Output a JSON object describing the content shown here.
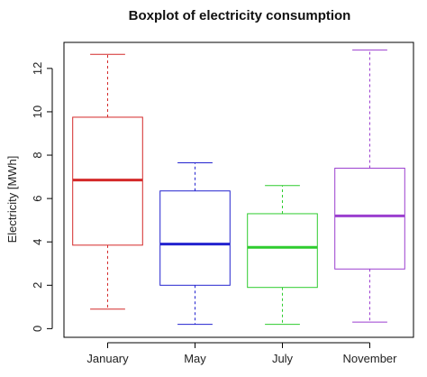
{
  "chart_data": {
    "type": "boxplot",
    "title": "Boxplot of electricity consumption",
    "xlabel": "",
    "ylabel": "Electricity [MWh]",
    "ylim": [
      -0.4,
      13.2
    ],
    "yticks": [
      0,
      2,
      4,
      6,
      8,
      10,
      12
    ],
    "grid": false,
    "legend": "none",
    "categories": [
      "January",
      "May",
      "July",
      "November"
    ],
    "boxes": [
      {
        "category": "January",
        "min": 0.9,
        "q1": 3.85,
        "median": 6.85,
        "q3": 9.75,
        "max": 12.65,
        "color": "#d42a2a"
      },
      {
        "category": "May",
        "min": 0.2,
        "q1": 2.0,
        "median": 3.9,
        "q3": 6.35,
        "max": 7.65,
        "color": "#2323cf"
      },
      {
        "category": "July",
        "min": 0.2,
        "q1": 1.9,
        "median": 3.75,
        "q3": 5.3,
        "max": 6.6,
        "color": "#2ecc2e"
      },
      {
        "category": "November",
        "min": 0.3,
        "q1": 2.75,
        "median": 5.2,
        "q3": 7.4,
        "max": 12.85,
        "color": "#9b3fcf"
      }
    ]
  }
}
